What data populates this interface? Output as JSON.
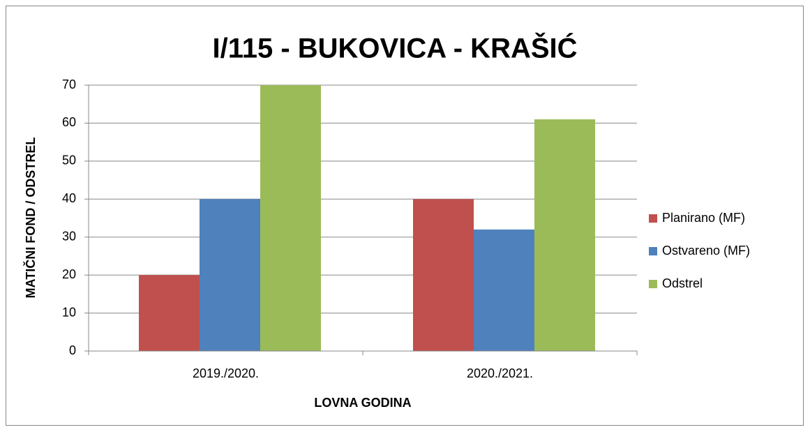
{
  "chart_data": {
    "type": "bar",
    "title": "I/115 - BUKOVICA - KRAŠIĆ",
    "x_label": "LOVNA GODINA",
    "y_label": "MATIČNI FOND / ODSTREL",
    "categories": [
      "2019./2020.",
      "2020./2021."
    ],
    "series": [
      {
        "name": "Planirano (MF)",
        "color": "#c0504d",
        "values": [
          20,
          40
        ]
      },
      {
        "name": "Ostvareno (MF)",
        "color": "#4f81bd",
        "values": [
          40,
          32
        ]
      },
      {
        "name": "Odstrel",
        "color": "#9bbb59",
        "values": [
          70,
          61
        ]
      }
    ],
    "ylim": [
      0,
      70
    ],
    "yticks": [
      0,
      10,
      20,
      30,
      40,
      50,
      60,
      70
    ],
    "grid": true,
    "legend": "right"
  }
}
